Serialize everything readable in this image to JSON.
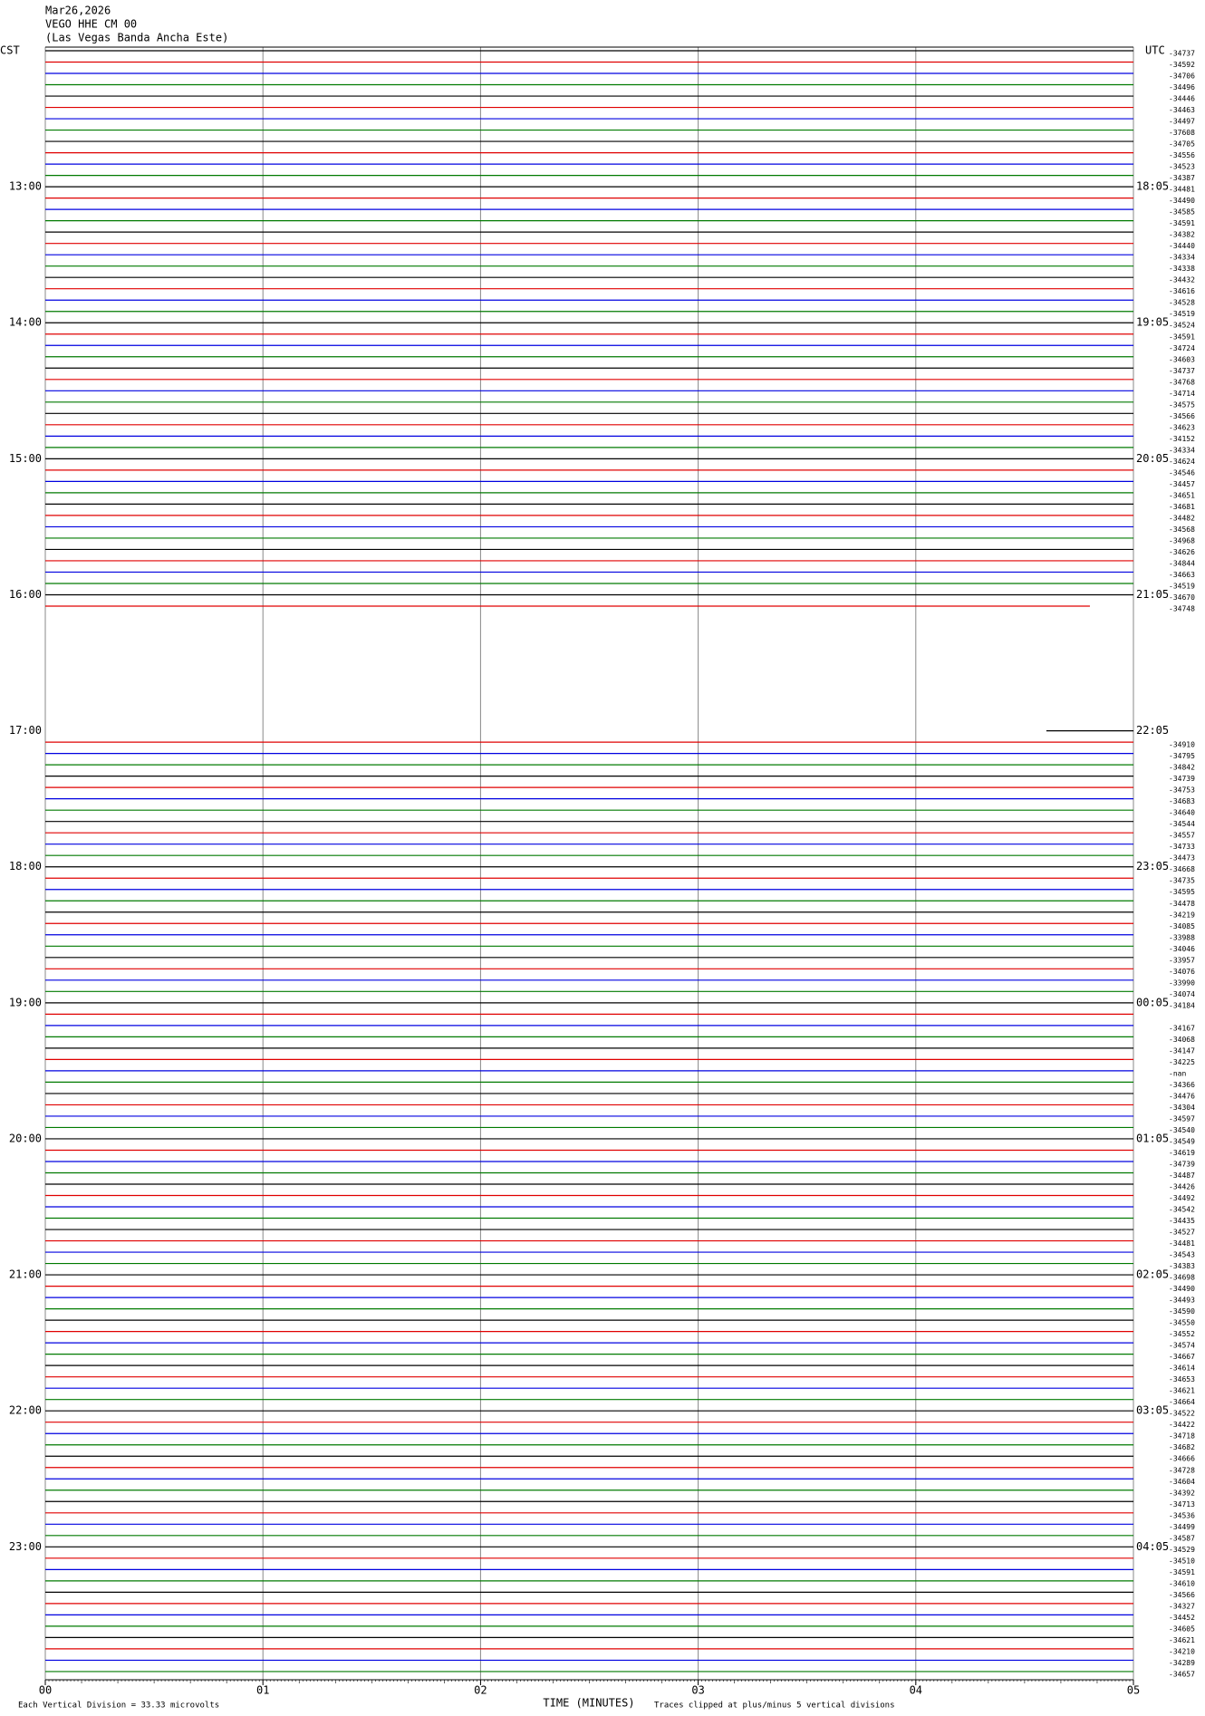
{
  "header": {
    "date": "Mar26,2026",
    "station": "VEGO HHE CM 00",
    "location": "(Las Vegas Banda Ancha Este)"
  },
  "left_axis": {
    "title": "CST",
    "hours": [
      "13:00",
      "14:00",
      "15:00",
      "16:00",
      "17:00",
      "18:00",
      "19:00",
      "20:00",
      "21:00",
      "22:00",
      "23:00"
    ]
  },
  "right_axis": {
    "title": "UTC",
    "hours": [
      "18:05",
      "19:05",
      "20:05",
      "21:05",
      "22:05",
      "23:05",
      "00:05",
      "01:05",
      "02:05",
      "03:05",
      "04:05"
    ]
  },
  "trace_colors": [
    "#000000",
    "#e00000",
    "#0000e0",
    "#007a00"
  ],
  "trace_labels": [
    "-34737",
    "-34592",
    "-34706",
    "-34496",
    "-34446",
    "-34463",
    "-34497",
    "-37608",
    "-34705",
    "-34556",
    "-34523",
    "-34387",
    "-34481",
    "-34490",
    "-34585",
    "-34591",
    "-34382",
    "-34440",
    "-34334",
    "-34338",
    "-34432",
    "-34616",
    "-34528",
    "-34519",
    "-34524",
    "-34591",
    "-34724",
    "-34603",
    "-34737",
    "-34768",
    "-34714",
    "-34575",
    "-34566",
    "-34623",
    "-34152",
    "-34334",
    "-34624",
    "-34546",
    "-34457",
    "-34651",
    "-34681",
    "-34482",
    "-34568",
    "-34968",
    "-34626",
    "-34844",
    "-34663",
    "-34519",
    "-34670",
    "-34748",
    null,
    null,
    null,
    null,
    null,
    null,
    null,
    null,
    null,
    null,
    null,
    "-34910",
    "-34795",
    "-34842",
    "-34739",
    "-34753",
    "-34683",
    "-34640",
    "-34544",
    "-34557",
    "-34733",
    "-34473",
    "-34668",
    "-34735",
    "-34595",
    "-34478",
    "-34219",
    "-34085",
    "-33988",
    "-34046",
    "-33957",
    "-34076",
    "-33990",
    "-34074",
    "-34184",
    null,
    "-34167",
    "-34068",
    "-34147",
    "-34225",
    "-nan",
    "-34366",
    "-34476",
    "-34304",
    "-34597",
    "-34540",
    "-34549",
    "-34619",
    "-34739",
    "-34487",
    "-34426",
    "-34492",
    "-34542",
    "-34435",
    "-34527",
    "-34481",
    "-34543",
    "-34383",
    "-34698",
    "-34490",
    "-34493",
    "-34590",
    "-34550",
    "-34552",
    "-34574",
    "-34667",
    "-34614",
    "-34653",
    "-34621",
    "-34664",
    "-34522",
    "-34422",
    "-34718",
    "-34682",
    "-34666",
    "-34728",
    "-34604",
    "-34392",
    "-34713",
    "-34536",
    "-34499",
    "-34587",
    "-34529",
    "-34510",
    "-34591",
    "-34610",
    "-34566",
    "-34327",
    "-34452",
    "-34605",
    "-34621",
    "-34210",
    "-34289",
    "-34657"
  ],
  "x_axis": {
    "title": "TIME (MINUTES)",
    "xlim": [
      0,
      5
    ],
    "xticks": [
      {
        "value": 0,
        "label": "00"
      },
      {
        "value": 1,
        "label": "01"
      },
      {
        "value": 2,
        "label": "02"
      },
      {
        "value": 3,
        "label": "03"
      },
      {
        "value": 4,
        "label": "04"
      },
      {
        "value": 5,
        "label": "05"
      }
    ]
  },
  "footer": {
    "scale_note": "Each Vertical Division =  33.33 microvolts",
    "clip_note": "Traces clipped at plus/minus 5 vertical divisions"
  }
}
